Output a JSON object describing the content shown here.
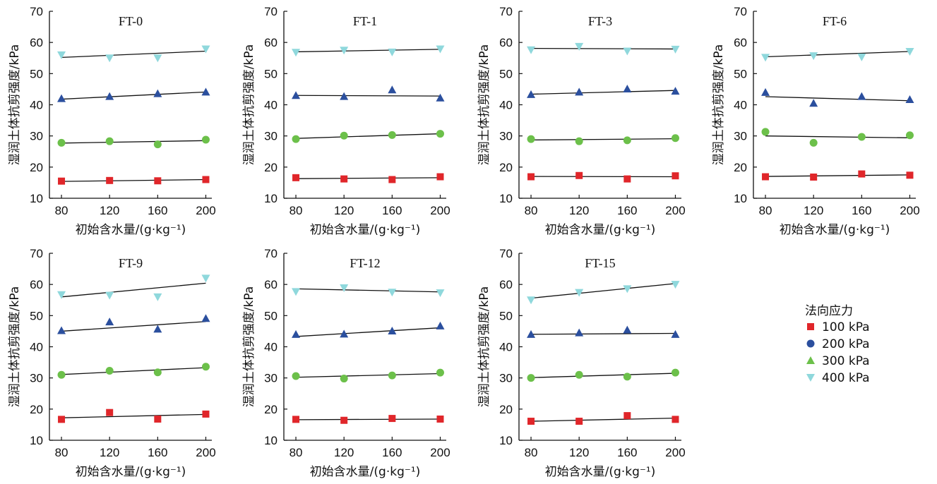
{
  "legend": {
    "title": "法向应力",
    "items": [
      {
        "label": "100 kPa",
        "marker": "square",
        "color": "#e0262a"
      },
      {
        "label": "200 kPa",
        "marker": "circle",
        "color": "#2b4f9e"
      },
      {
        "label": "300 kPa",
        "marker": "triangle-up",
        "color": "#6cc04a"
      },
      {
        "label": "400 kPa",
        "marker": "triangle-down",
        "color": "#8fd8dc"
      }
    ]
  },
  "axes": {
    "xlabel": "初始含水量/(g·kg⁻¹)",
    "ylabel": "湿润土体抗剪强度/kPa",
    "x_ticks": [
      80,
      120,
      160,
      200
    ],
    "y_ticks": [
      10,
      20,
      30,
      40,
      50,
      60,
      70
    ],
    "xlim": [
      70,
      205
    ],
    "ylim": [
      10,
      70
    ]
  },
  "chart_data": [
    {
      "type": "scatter",
      "title": "FT-0",
      "x": [
        80,
        120,
        160,
        200
      ],
      "series": [
        {
          "marker": "square",
          "color": "#e0262a",
          "values": [
            15.5,
            15.7,
            15.6,
            16.0
          ],
          "fit": [
            15.4,
            16.0
          ]
        },
        {
          "marker": "circle",
          "color": "#6cc04a",
          "values": [
            27.8,
            28.3,
            27.3,
            28.8
          ],
          "fit": [
            27.7,
            28.5
          ]
        },
        {
          "marker": "triangle-up",
          "color": "#2b4f9e",
          "values": [
            42.0,
            42.7,
            43.6,
            44.1
          ],
          "fit": [
            41.8,
            44.1
          ]
        },
        {
          "marker": "triangle-down",
          "color": "#8fd8dc",
          "values": [
            56.0,
            55.0,
            55.0,
            57.9
          ],
          "fit": [
            55.2,
            57.2
          ]
        }
      ]
    },
    {
      "type": "scatter",
      "title": "FT-1",
      "x": [
        80,
        120,
        160,
        200
      ],
      "series": [
        {
          "marker": "square",
          "color": "#e0262a",
          "values": [
            16.6,
            16.2,
            16.0,
            16.9
          ],
          "fit": [
            16.3,
            16.6
          ]
        },
        {
          "marker": "circle",
          "color": "#6cc04a",
          "values": [
            29.0,
            30.1,
            30.3,
            30.7
          ],
          "fit": [
            29.2,
            30.7
          ]
        },
        {
          "marker": "triangle-up",
          "color": "#2b4f9e",
          "values": [
            43.0,
            42.7,
            44.8,
            42.2
          ],
          "fit": [
            43.0,
            42.8
          ]
        },
        {
          "marker": "triangle-down",
          "color": "#8fd8dc",
          "values": [
            56.8,
            57.5,
            56.9,
            57.9
          ],
          "fit": [
            57.0,
            57.8
          ]
        }
      ]
    },
    {
      "type": "scatter",
      "title": "FT-3",
      "x": [
        80,
        120,
        160,
        200
      ],
      "series": [
        {
          "marker": "square",
          "color": "#e0262a",
          "values": [
            16.9,
            17.3,
            16.2,
            17.2
          ],
          "fit": [
            17.0,
            16.9
          ]
        },
        {
          "marker": "circle",
          "color": "#6cc04a",
          "values": [
            29.0,
            28.3,
            28.6,
            29.3
          ],
          "fit": [
            28.7,
            29.1
          ]
        },
        {
          "marker": "triangle-up",
          "color": "#2b4f9e",
          "values": [
            43.3,
            44.1,
            45.1,
            44.4
          ],
          "fit": [
            43.4,
            44.6
          ]
        },
        {
          "marker": "triangle-down",
          "color": "#8fd8dc",
          "values": [
            57.6,
            58.7,
            57.2,
            57.8
          ],
          "fit": [
            58.1,
            57.9
          ]
        }
      ]
    },
    {
      "type": "scatter",
      "title": "FT-6",
      "x": [
        80,
        120,
        160,
        200
      ],
      "series": [
        {
          "marker": "square",
          "color": "#e0262a",
          "values": [
            16.9,
            16.8,
            17.8,
            17.4
          ],
          "fit": [
            17.0,
            17.5
          ]
        },
        {
          "marker": "circle",
          "color": "#6cc04a",
          "values": [
            31.3,
            27.8,
            29.7,
            30.2
          ],
          "fit": [
            30.0,
            29.4
          ]
        },
        {
          "marker": "triangle-up",
          "color": "#2b4f9e",
          "values": [
            44.0,
            40.5,
            42.7,
            41.7
          ],
          "fit": [
            42.6,
            41.3
          ]
        },
        {
          "marker": "triangle-down",
          "color": "#8fd8dc",
          "values": [
            55.2,
            55.7,
            55.3,
            57.1
          ],
          "fit": [
            55.4,
            57.1
          ]
        }
      ]
    },
    {
      "type": "scatter",
      "title": "FT-9",
      "x": [
        80,
        120,
        160,
        200
      ],
      "series": [
        {
          "marker": "square",
          "color": "#e0262a",
          "values": [
            16.7,
            18.9,
            16.8,
            18.4
          ],
          "fit": [
            17.2,
            18.3
          ]
        },
        {
          "marker": "circle",
          "color": "#6cc04a",
          "values": [
            31.0,
            32.3,
            31.8,
            33.6
          ],
          "fit": [
            31.1,
            33.3
          ]
        },
        {
          "marker": "triangle-up",
          "color": "#2b4f9e",
          "values": [
            45.2,
            48.0,
            45.7,
            49.1
          ],
          "fit": [
            45.0,
            48.1
          ]
        },
        {
          "marker": "triangle-down",
          "color": "#8fd8dc",
          "values": [
            56.7,
            56.5,
            56.0,
            62.0
          ],
          "fit": [
            56.0,
            60.4
          ]
        }
      ]
    },
    {
      "type": "scatter",
      "title": "FT-12",
      "x": [
        80,
        120,
        160,
        200
      ],
      "series": [
        {
          "marker": "square",
          "color": "#e0262a",
          "values": [
            16.7,
            16.4,
            17.0,
            16.8
          ],
          "fit": [
            16.6,
            16.8
          ]
        },
        {
          "marker": "circle",
          "color": "#6cc04a",
          "values": [
            30.6,
            29.8,
            30.8,
            31.7
          ],
          "fit": [
            30.2,
            31.4
          ]
        },
        {
          "marker": "triangle-up",
          "color": "#2b4f9e",
          "values": [
            44.0,
            44.1,
            45.1,
            46.7
          ],
          "fit": [
            43.3,
            46.1
          ]
        },
        {
          "marker": "triangle-down",
          "color": "#8fd8dc",
          "values": [
            57.7,
            58.9,
            57.5,
            57.3
          ],
          "fit": [
            58.6,
            57.6
          ]
        }
      ]
    },
    {
      "type": "scatter",
      "title": "FT-15",
      "x": [
        80,
        120,
        160,
        200
      ],
      "series": [
        {
          "marker": "square",
          "color": "#e0262a",
          "values": [
            16.1,
            16.1,
            17.9,
            16.7
          ],
          "fit": [
            16.1,
            17.1
          ]
        },
        {
          "marker": "circle",
          "color": "#6cc04a",
          "values": [
            30.0,
            31.0,
            30.4,
            31.7
          ],
          "fit": [
            30.1,
            31.5
          ]
        },
        {
          "marker": "triangle-up",
          "color": "#2b4f9e",
          "values": [
            44.0,
            44.5,
            45.4,
            44.0
          ],
          "fit": [
            44.0,
            44.3
          ]
        },
        {
          "marker": "triangle-down",
          "color": "#8fd8dc",
          "values": [
            55.0,
            57.4,
            58.6,
            60.0
          ],
          "fit": [
            55.6,
            60.3
          ]
        }
      ]
    }
  ]
}
